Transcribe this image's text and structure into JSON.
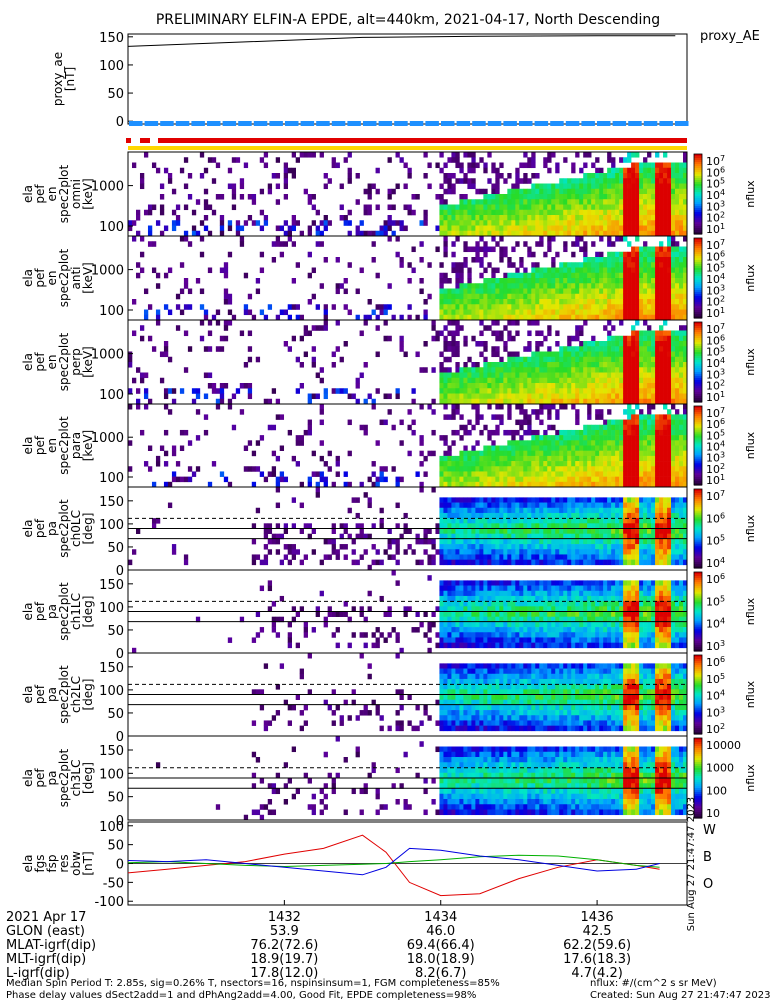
{
  "title": "PRELIMINARY ELFIN-A EPDE, alt=440km, 2021-04-17, North Descending",
  "colors": {
    "ae_bar": "#1e90ff",
    "fgm_bar": "#e00000",
    "status_bar": "#ffd700",
    "w_trace": "#e00000",
    "b_trace": "#00b000",
    "o_trace": "#0000e0"
  },
  "chart_data": [
    {
      "type": "line",
      "panel": "proxy_ae",
      "ylabel": "proxy_ae [nT]",
      "legend": "proxy_AE",
      "ylim": [
        -5,
        155
      ],
      "yticks": [
        "150",
        "100",
        "50",
        "0"
      ],
      "x": [
        1430.0,
        1431.5,
        1433.0,
        1434.5,
        1436.0,
        1437.0
      ],
      "values": [
        133,
        141,
        149,
        151,
        152,
        152
      ]
    },
    {
      "type": "heatmap",
      "panel": "ela_pef_en_spec2plot_omni",
      "ylabel": [
        "ela",
        "pef",
        "en",
        "spec2plot",
        "omni",
        "[keV]"
      ],
      "yscale": "log",
      "yticks": [
        "1000",
        "100"
      ],
      "colorbar_label": "nflux",
      "colorbar_ticks": [
        "10^7",
        "10^6",
        "10^5",
        "10^4",
        "10^3",
        "10^2",
        "10^1"
      ]
    },
    {
      "type": "heatmap",
      "panel": "ela_pef_en_spec2plot_anti",
      "ylabel": [
        "ela",
        "pef",
        "en",
        "spec2plot",
        "anti",
        "[keV]"
      ],
      "yscale": "log",
      "yticks": [
        "1000",
        "100"
      ],
      "colorbar_label": "nflux",
      "colorbar_ticks": [
        "10^7",
        "10^6",
        "10^5",
        "10^4",
        "10^3",
        "10^2",
        "10^1"
      ]
    },
    {
      "type": "heatmap",
      "panel": "ela_pef_en_spec2plot_perp",
      "ylabel": [
        "ela",
        "pef",
        "en",
        "spec2plot",
        "perp",
        "[keV]"
      ],
      "yscale": "log",
      "yticks": [
        "1000",
        "100"
      ],
      "colorbar_label": "nflux",
      "colorbar_ticks": [
        "10^7",
        "10^6",
        "10^5",
        "10^4",
        "10^3",
        "10^2",
        "10^1"
      ]
    },
    {
      "type": "heatmap",
      "panel": "ela_pef_en_spec2plot_para",
      "ylabel": [
        "ela",
        "pef",
        "en",
        "spec2plot",
        "para",
        "[keV]"
      ],
      "yscale": "log",
      "yticks": [
        "1000",
        "100"
      ],
      "colorbar_label": "nflux",
      "colorbar_ticks": [
        "10^7",
        "10^6",
        "10^5",
        "10^4",
        "10^3",
        "10^2",
        "10^1"
      ]
    },
    {
      "type": "heatmap",
      "panel": "ela_pef_pa_spec2plot_ch0LC",
      "ylabel": [
        "ela",
        "pef",
        "pa",
        "spec2plot",
        "ch0LC",
        "[deg]"
      ],
      "yticks": [
        "150",
        "100",
        "50",
        "0"
      ],
      "colorbar_label": "nflux",
      "colorbar_ticks": [
        "10^7",
        "10^6",
        "10^5",
        "10^4"
      ]
    },
    {
      "type": "heatmap",
      "panel": "ela_pef_pa_spec2plot_ch1LC",
      "ylabel": [
        "ela",
        "pef",
        "pa",
        "spec2plot",
        "ch1LC",
        "[deg]"
      ],
      "yticks": [
        "150",
        "100",
        "50",
        "0"
      ],
      "colorbar_label": "nflux",
      "colorbar_ticks": [
        "10^6",
        "10^5",
        "10^4",
        "10^3"
      ]
    },
    {
      "type": "heatmap",
      "panel": "ela_pef_pa_spec2plot_ch2LC",
      "ylabel": [
        "ela",
        "pef",
        "pa",
        "spec2plot",
        "ch2LC",
        "[deg]"
      ],
      "yticks": [
        "150",
        "100",
        "50",
        "0"
      ],
      "colorbar_label": "nflux",
      "colorbar_ticks": [
        "10^6",
        "10^5",
        "10^4",
        "10^3",
        "10^2"
      ]
    },
    {
      "type": "heatmap",
      "panel": "ela_pef_pa_spec2plot_ch3LC",
      "ylabel": [
        "ela",
        "pef",
        "pa",
        "spec2plot",
        "ch3LC",
        "[deg]"
      ],
      "yticks": [
        "150",
        "100",
        "50",
        "0"
      ],
      "colorbar_label": "nflux",
      "colorbar_ticks": [
        "10000",
        "1000",
        "100",
        "10"
      ]
    },
    {
      "type": "line",
      "panel": "ela_fgs_fsp_res_obw",
      "ylabel": [
        "ela",
        "fgs",
        "fsp",
        "res",
        "obw",
        "[nT]"
      ],
      "ylim": [
        -110,
        110
      ],
      "yticks": [
        "100",
        "50",
        "0",
        "-50",
        "-100"
      ],
      "legend": [
        "W",
        "B",
        "O"
      ],
      "side_text": "Sun Aug 27 21:47:47 2023",
      "x": [
        1430.0,
        1430.5,
        1431.0,
        1431.5,
        1432.0,
        1432.5,
        1433.0,
        1433.3,
        1433.6,
        1434.0,
        1434.5,
        1435.0,
        1435.5,
        1436.0,
        1436.5,
        1436.8
      ],
      "series": [
        {
          "name": "W",
          "values": [
            -25,
            -15,
            -5,
            5,
            25,
            40,
            75,
            30,
            -50,
            -85,
            -80,
            -40,
            -10,
            10,
            -5,
            -15
          ]
        },
        {
          "name": "B",
          "values": [
            2,
            5,
            0,
            -5,
            -8,
            -5,
            -2,
            0,
            5,
            10,
            18,
            22,
            20,
            10,
            -5,
            -10
          ]
        },
        {
          "name": "O",
          "values": [
            8,
            5,
            10,
            0,
            -10,
            -20,
            -30,
            -10,
            40,
            35,
            20,
            10,
            -5,
            -20,
            -15,
            0
          ]
        }
      ]
    }
  ],
  "footer": {
    "rows": [
      {
        "label": "2021 Apr 17",
        "values": [
          "1432",
          "1434",
          "1436"
        ]
      },
      {
        "label": "GLON (east)",
        "values": [
          "53.9",
          "46.0",
          "42.5"
        ]
      },
      {
        "label": "MLAT-igrf(dip)",
        "values": [
          "76.2(72.6)",
          "69.4(66.4)",
          "62.2(59.6)"
        ]
      },
      {
        "label": "MLT-igrf(dip)",
        "values": [
          "18.9(19.7)",
          "18.0(18.9)",
          "17.6(18.3)"
        ]
      },
      {
        "label": "L-igrf(dip)",
        "values": [
          "17.8(12.0)",
          "8.2(6.7)",
          "4.7(4.2)"
        ]
      }
    ],
    "note_left_1": "Median Spin Period T: 2.85s, sig=0.26% T, nsectors=16, nspinsinsum=1, FGM completeness=85%",
    "note_left_2": "Phase delay values dSect2add=1 and dPhAng2add=4.00, Good Fit, EPDE completeness=98%",
    "note_right_1": "nflux: #/(cm^2 s sr MeV)",
    "note_right_2": "Created: Sun Aug 27 21:47:47 2023"
  }
}
